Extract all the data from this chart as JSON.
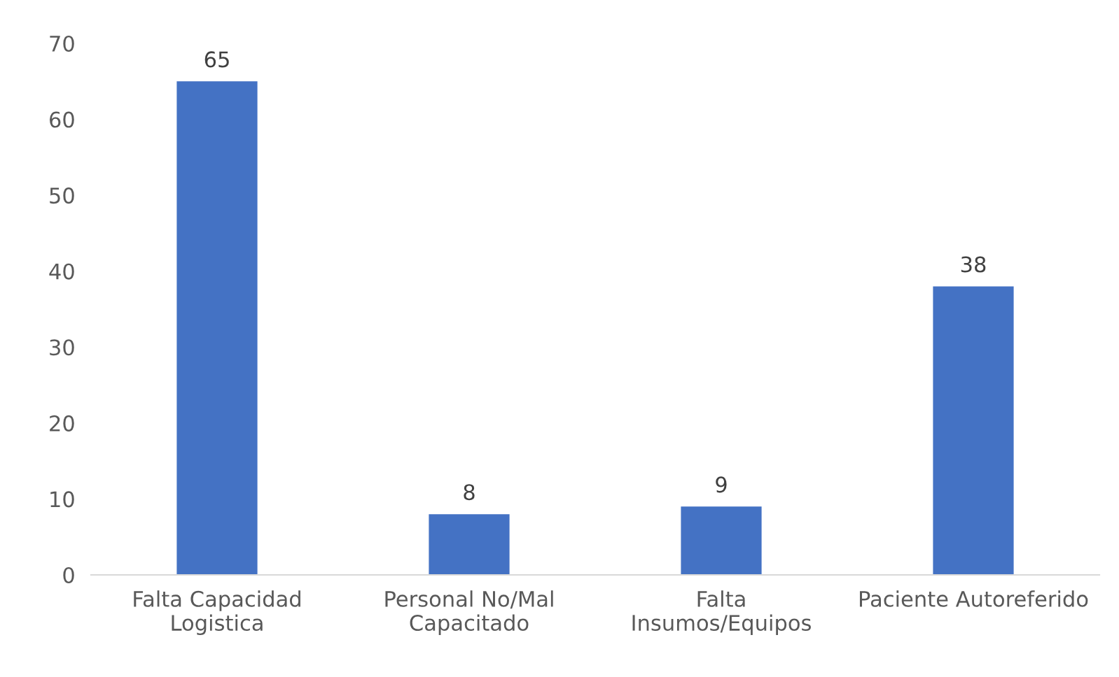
{
  "chart_data": {
    "type": "bar",
    "categories": [
      "Falta Capacidad\nLogistica",
      "Personal No/Mal\nCapacitado",
      "Falta\nInsumos/Equipos",
      "Paciente Autoreferido"
    ],
    "values": [
      65,
      8,
      9,
      38
    ],
    "color": "#4472c4",
    "ylim": [
      0,
      70
    ],
    "yticks": [
      0,
      10,
      20,
      30,
      40,
      50,
      60,
      70
    ],
    "grid": false,
    "data_labels": true
  }
}
